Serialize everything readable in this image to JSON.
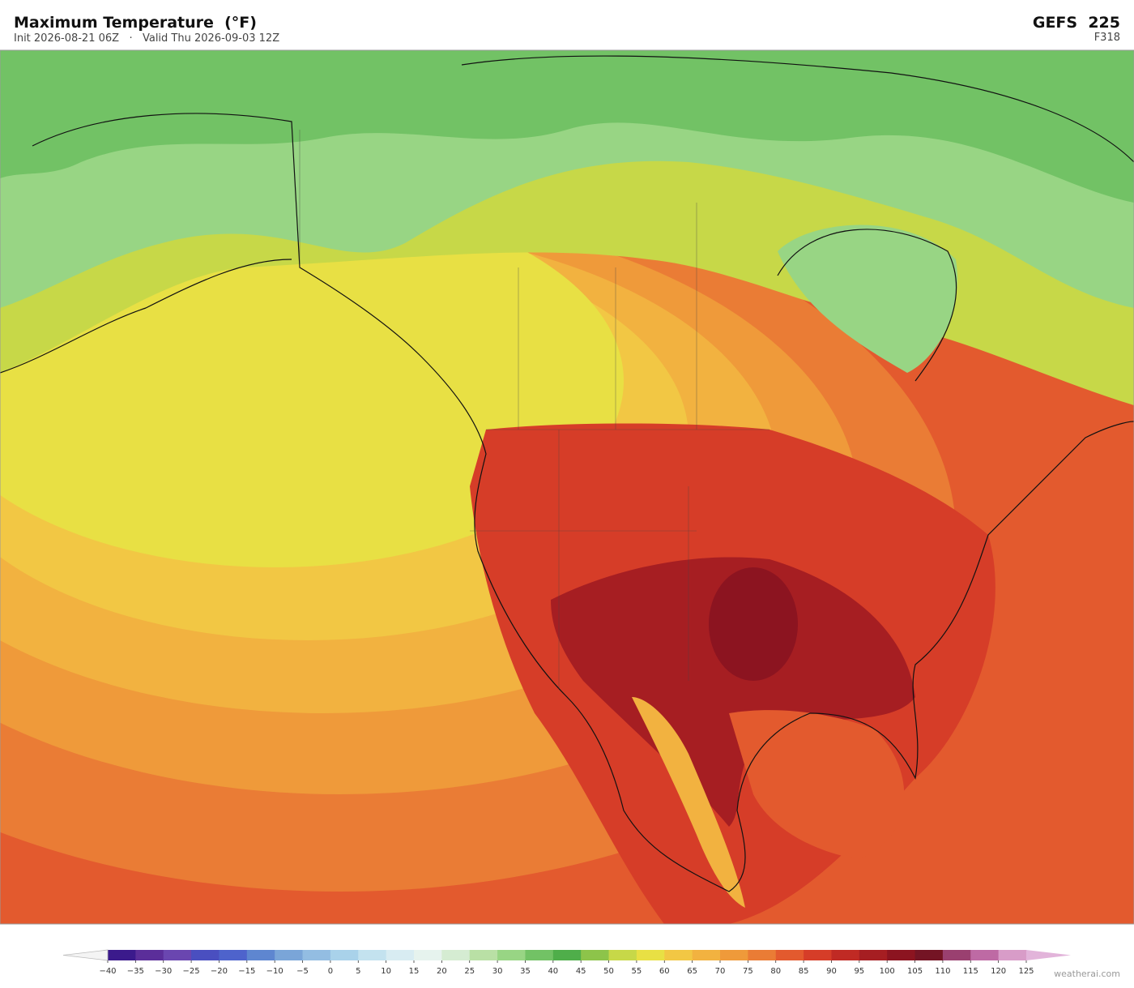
{
  "header": {
    "title": "Maximum Temperature  (°F)",
    "subtitle": "Init 2026-08-21 06Z   ·   Valid Thu 2026-09-03 12Z",
    "model": "GEFS  225",
    "forecast_hour": "F318"
  },
  "colorbar": {
    "lim": [
      -40,
      125
    ],
    "ticks": [
      {
        "value": -40,
        "label": "−40"
      },
      {
        "value": -35,
        "label": "−35"
      },
      {
        "value": -30,
        "label": "−30"
      },
      {
        "value": -25,
        "label": "−25"
      },
      {
        "value": -20,
        "label": "−20"
      },
      {
        "value": -15,
        "label": "−15"
      },
      {
        "value": -10,
        "label": "−10"
      },
      {
        "value": -5,
        "label": "−5"
      },
      0,
      5,
      10,
      15,
      20,
      25,
      30,
      35,
      40,
      45,
      50,
      55,
      60,
      65,
      70,
      75,
      80,
      85,
      90,
      95,
      100,
      105,
      110,
      115,
      120,
      125
    ],
    "colors": [
      "#3b1a8c",
      "#5b2e9a",
      "#6a46b0",
      "#4a4fc0",
      "#4e63cc",
      "#5e86d0",
      "#7aa5d8",
      "#93bde2",
      "#a9d2ea",
      "#c3e2ef",
      "#d8ecf2",
      "#e6f3ee",
      "#d5ecd2",
      "#b9e0a5",
      "#98d584",
      "#72c265",
      "#4fae4a",
      "#8dc44a",
      "#c7d848",
      "#e8e044",
      "#f2c744",
      "#f2b240",
      "#ef9a3a",
      "#ea7c35",
      "#e35a2e",
      "#d63d28",
      "#c02a24",
      "#a61e22",
      "#8c1420",
      "#741424",
      "#9a4070",
      "#be6aa4",
      "#d89cc8"
    ],
    "under_color": "#f4f4f4",
    "over_color": "#e2b4da"
  },
  "footer": {
    "watermark": "weatherai.com"
  }
}
